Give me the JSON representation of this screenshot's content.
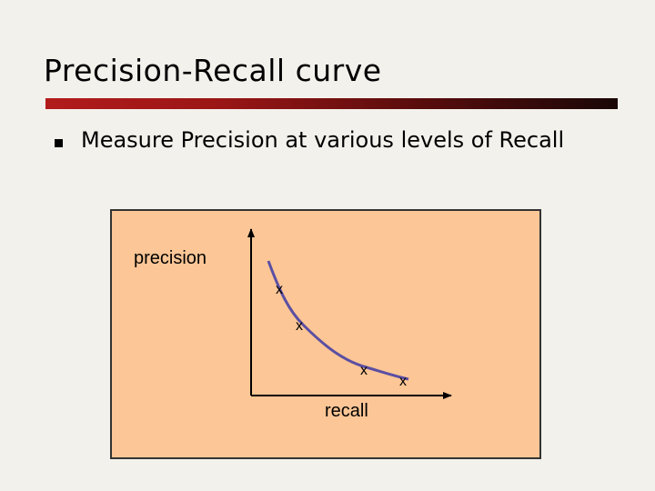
{
  "slide": {
    "title": "Precision-Recall curve",
    "accent_color": "#b21b1b"
  },
  "bullets": [
    {
      "icon": "square-bullet-icon",
      "text": "Measure Precision at various levels of Recall"
    }
  ],
  "diagram": {
    "background_color": "#fcc696",
    "curve_color": "#5b4fa3",
    "y_label": "precision",
    "x_label": "recall",
    "point_marker": "x",
    "points_count_shown": 4
  }
}
